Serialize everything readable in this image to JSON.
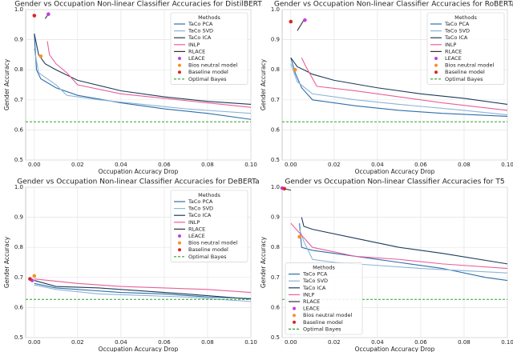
{
  "chart_data": [
    {
      "type": "line",
      "title": "Gender vs Occupation Non-linear Classifier Accuracies for DistilBERT",
      "x_label": "Occupation Accuracy Drop",
      "y_label": "Gender Accuracy",
      "legend_title": "Methods",
      "legend": "upper right",
      "grid": true,
      "xlim": [
        -0.004,
        0.1
      ],
      "ylim": [
        0.5,
        1.0
      ],
      "xticks": [
        {
          "value": 0,
          "label": "0.00"
        },
        {
          "value": 0.02,
          "label": "0.02"
        },
        {
          "value": 0.04,
          "label": "0.04"
        },
        {
          "value": 0.06,
          "label": "0.06"
        },
        {
          "value": 0.08,
          "label": "0.08"
        },
        {
          "value": 0.1,
          "label": "0.10"
        }
      ],
      "yticks": [
        0.5,
        0.6,
        0.7,
        0.8,
        0.9,
        {
          "value": 1,
          "label": "1.0"
        }
      ],
      "series": [
        {
          "name": "TaCo PCA",
          "color": "#2e6fa8",
          "kind": "line",
          "x": [
            0,
            0.001,
            0.003,
            0.01,
            0.02,
            0.04,
            0.06,
            0.08,
            0.1
          ],
          "values": [
            0.92,
            0.8,
            0.77,
            0.74,
            0.715,
            0.69,
            0.67,
            0.655,
            0.635
          ]
        },
        {
          "name": "TaCo SVD",
          "color": "#8cb3d9",
          "kind": "line",
          "x": [
            0,
            0.002,
            0.01,
            0.015,
            0.03,
            0.05,
            0.07,
            0.1
          ],
          "values": [
            0.87,
            0.79,
            0.75,
            0.715,
            0.7,
            0.685,
            0.67,
            0.655
          ]
        },
        {
          "name": "TaCo ICA",
          "color": "#1f3b5a",
          "kind": "line",
          "x": [
            0,
            0.002,
            0.005,
            0.01,
            0.02,
            0.04,
            0.06,
            0.08,
            0.1
          ],
          "values": [
            0.92,
            0.85,
            0.82,
            0.8,
            0.765,
            0.73,
            0.71,
            0.695,
            0.685
          ]
        },
        {
          "name": "INLP",
          "color": "#e8609a",
          "kind": "line",
          "x": [
            0.006,
            0.007,
            0.01,
            0.015,
            0.02,
            0.04,
            0.06,
            0.08,
            0.1
          ],
          "values": [
            0.895,
            0.85,
            0.82,
            0.79,
            0.75,
            0.72,
            0.705,
            0.69,
            0.675
          ]
        },
        {
          "name": "RLACE",
          "color": "#3a2d3f",
          "kind": "line",
          "x": [
            0.005,
            0.0065
          ],
          "values": [
            0.97,
            0.985
          ]
        },
        {
          "name": "LEACE",
          "color": "#c040e0",
          "kind": "scatter",
          "x": [
            0.0065
          ],
          "values": [
            0.985
          ]
        },
        {
          "name": "Bios neutral model",
          "color": "#f5922a",
          "kind": "scatter",
          "x": [
            0.003
          ],
          "values": [
            0.845
          ]
        },
        {
          "name": "Baseline model",
          "color": "#d62728",
          "kind": "scatter",
          "x": [
            0
          ],
          "values": [
            0.98
          ]
        },
        {
          "name": "Optimal Bayes",
          "color": "#2ca02c",
          "kind": "hline",
          "values": [
            0.627
          ]
        }
      ]
    },
    {
      "type": "line",
      "title": "Gender vs Occupation Non-linear Classifier Accuracies for RoBERTa",
      "x_label": "Occupation Accuracy Drop",
      "y_label": "Gender Accuracy",
      "legend_title": "Methods",
      "legend": "upper right",
      "grid": true,
      "xlim": [
        -0.004,
        0.1
      ],
      "ylim": [
        0.5,
        1.0
      ],
      "xticks": [
        {
          "value": 0,
          "label": "0.00"
        },
        {
          "value": 0.02,
          "label": "0.02"
        },
        {
          "value": 0.04,
          "label": "0.04"
        },
        {
          "value": 0.06,
          "label": "0.06"
        },
        {
          "value": 0.08,
          "label": "0.08"
        },
        {
          "value": 0.1,
          "label": "0.10"
        }
      ],
      "yticks": [
        0.5,
        0.6,
        0.7,
        0.8,
        0.9,
        {
          "value": 1,
          "label": "1.0"
        }
      ],
      "series": [
        {
          "name": "TaCo PCA",
          "color": "#2e6fa8",
          "kind": "line",
          "x": [
            0,
            0.002,
            0.005,
            0.01,
            0.03,
            0.05,
            0.07,
            0.1
          ],
          "values": [
            0.84,
            0.79,
            0.74,
            0.7,
            0.68,
            0.665,
            0.655,
            0.645
          ]
        },
        {
          "name": "TaCo SVD",
          "color": "#8cb3d9",
          "kind": "line",
          "x": [
            0,
            0.003,
            0.01,
            0.03,
            0.05,
            0.08,
            0.1
          ],
          "values": [
            0.82,
            0.76,
            0.72,
            0.7,
            0.685,
            0.665,
            0.65
          ]
        },
        {
          "name": "TaCo ICA",
          "color": "#1f3b5a",
          "kind": "line",
          "x": [
            0,
            0.003,
            0.006,
            0.01,
            0.02,
            0.04,
            0.06,
            0.08,
            0.1
          ],
          "values": [
            0.84,
            0.81,
            0.8,
            0.785,
            0.765,
            0.74,
            0.72,
            0.705,
            0.685
          ]
        },
        {
          "name": "INLP",
          "color": "#e8609a",
          "kind": "line",
          "x": [
            0.005,
            0.007,
            0.012,
            0.03,
            0.05,
            0.07,
            0.1
          ],
          "values": [
            0.84,
            0.81,
            0.745,
            0.73,
            0.71,
            0.69,
            0.665
          ]
        },
        {
          "name": "RLACE",
          "color": "#3a2d3f",
          "kind": "line",
          "x": [
            0.003,
            0.006
          ],
          "values": [
            0.93,
            0.965
          ]
        },
        {
          "name": "LEACE",
          "color": "#c040e0",
          "kind": "scatter",
          "x": [
            0.0065
          ],
          "values": [
            0.965
          ]
        },
        {
          "name": "Bios neutral model",
          "color": "#f5922a",
          "kind": "scatter",
          "x": [
            0.002
          ],
          "values": [
            0.8
          ]
        },
        {
          "name": "Baseline model",
          "color": "#d62728",
          "kind": "scatter",
          "x": [
            0
          ],
          "values": [
            0.96
          ]
        },
        {
          "name": "Optimal Bayes",
          "color": "#2ca02c",
          "kind": "hline",
          "values": [
            0.627
          ]
        }
      ]
    },
    {
      "type": "line",
      "title": "Gender vs Occupation Non-linear Classifier Accuracies for DeBERTa",
      "x_label": "Occupation Accuracy Drop",
      "y_label": "Gender Accuracy",
      "legend_title": "Methods",
      "legend": "upper right",
      "grid": true,
      "xlim": [
        -0.004,
        0.1
      ],
      "ylim": [
        0.5,
        1.0
      ],
      "xticks": [
        {
          "value": 0,
          "label": "0.00"
        },
        {
          "value": 0.02,
          "label": "0.02"
        },
        {
          "value": 0.04,
          "label": "0.04"
        },
        {
          "value": 0.06,
          "label": "0.06"
        },
        {
          "value": 0.08,
          "label": "0.08"
        },
        {
          "value": 0.1,
          "label": "0.10"
        }
      ],
      "yticks": [
        0.5,
        0.6,
        0.7,
        0.8,
        0.9,
        {
          "value": 1,
          "label": "1.0"
        }
      ],
      "series": [
        {
          "name": "TaCo PCA",
          "color": "#2e6fa8",
          "kind": "line",
          "x": [
            0,
            0.01,
            0.02,
            0.04,
            0.06,
            0.08,
            0.1
          ],
          "values": [
            0.68,
            0.665,
            0.66,
            0.65,
            0.645,
            0.635,
            0.63
          ]
        },
        {
          "name": "TaCo SVD",
          "color": "#8cb3d9",
          "kind": "line",
          "x": [
            0,
            0.01,
            0.03,
            0.05,
            0.07,
            0.1
          ],
          "values": [
            0.675,
            0.66,
            0.645,
            0.64,
            0.635,
            0.62
          ]
        },
        {
          "name": "TaCo ICA",
          "color": "#1f3b5a",
          "kind": "line",
          "x": [
            0,
            0.01,
            0.03,
            0.05,
            0.07,
            0.1
          ],
          "values": [
            0.69,
            0.67,
            0.665,
            0.655,
            0.645,
            0.628
          ]
        },
        {
          "name": "INLP",
          "color": "#e8609a",
          "kind": "line",
          "x": [
            0,
            0.02,
            0.04,
            0.06,
            0.08,
            0.1
          ],
          "values": [
            0.695,
            0.68,
            0.67,
            0.665,
            0.66,
            0.65
          ]
        },
        {
          "name": "RLACE",
          "color": "#3a2d3f",
          "kind": "line",
          "x": [
            -0.0025,
            -0.0015
          ],
          "values": [
            0.695,
            0.7
          ]
        },
        {
          "name": "LEACE",
          "color": "#c040e0",
          "kind": "scatter",
          "x": [
            -0.001
          ],
          "values": [
            0.69
          ]
        },
        {
          "name": "Bios neutral model",
          "color": "#f5922a",
          "kind": "scatter",
          "x": [
            0
          ],
          "values": [
            0.705
          ]
        },
        {
          "name": "Baseline model",
          "color": "#d62728",
          "kind": "scatter",
          "x": [
            -0.002
          ],
          "values": [
            0.695
          ]
        },
        {
          "name": "Optimal Bayes",
          "color": "#2ca02c",
          "kind": "hline",
          "values": [
            0.627
          ]
        }
      ]
    },
    {
      "type": "line",
      "title": "Gender vs Occupation Non-linear Classifier Accuracies for T5",
      "x_label": "Occupation Accuracy Drop",
      "y_label": "Gender Accuracy",
      "legend_title": "Methods",
      "legend": "lower left",
      "grid": true,
      "xlim": [
        -0.004,
        0.1
      ],
      "ylim": [
        0.5,
        1.0
      ],
      "xticks": [
        {
          "value": 0,
          "label": "0.00"
        },
        {
          "value": 0.02,
          "label": "0.02"
        },
        {
          "value": 0.04,
          "label": "0.04"
        },
        {
          "value": 0.06,
          "label": "0.06"
        },
        {
          "value": 0.08,
          "label": "0.08"
        },
        {
          "value": 0.1,
          "label": "0.10"
        }
      ],
      "yticks": [
        0.5,
        0.6,
        0.7,
        0.8,
        0.9,
        {
          "value": 1,
          "label": "1.0"
        }
      ],
      "series": [
        {
          "name": "TaCo PCA",
          "color": "#2e6fa8",
          "kind": "line",
          "x": [
            0.004,
            0.005,
            0.01,
            0.03,
            0.05,
            0.07,
            0.09,
            0.1
          ],
          "values": [
            0.88,
            0.8,
            0.79,
            0.77,
            0.75,
            0.73,
            0.7,
            0.69
          ]
        },
        {
          "name": "TaCo SVD",
          "color": "#8cb3d9",
          "kind": "line",
          "x": [
            0.004,
            0.006,
            0.01,
            0.02,
            0.04,
            0.06,
            0.1
          ],
          "values": [
            0.86,
            0.82,
            0.76,
            0.75,
            0.74,
            0.73,
            0.715
          ]
        },
        {
          "name": "TaCo ICA",
          "color": "#1f3b5a",
          "kind": "line",
          "x": [
            0.005,
            0.006,
            0.01,
            0.03,
            0.05,
            0.07,
            0.1
          ],
          "values": [
            0.9,
            0.87,
            0.86,
            0.83,
            0.8,
            0.78,
            0.745
          ]
        },
        {
          "name": "INLP",
          "color": "#e8609a",
          "kind": "line",
          "x": [
            0,
            0.005,
            0.01,
            0.03,
            0.05,
            0.07,
            0.1
          ],
          "values": [
            0.88,
            0.84,
            0.8,
            0.77,
            0.76,
            0.745,
            0.73
          ]
        },
        {
          "name": "RLACE",
          "color": "#3a2d3f",
          "kind": "line",
          "x": [
            -0.003,
            0
          ],
          "values": [
            0.995,
            0.99
          ]
        },
        {
          "name": "LEACE",
          "color": "#c040e0",
          "kind": "scatter",
          "x": [
            -0.004
          ],
          "values": [
            0.997
          ]
        },
        {
          "name": "Bios neutral model",
          "color": "#f5922a",
          "kind": "scatter",
          "x": [
            0.004
          ],
          "values": [
            0.835
          ]
        },
        {
          "name": "Baseline model",
          "color": "#d62728",
          "kind": "scatter",
          "x": [
            -0.003
          ],
          "values": [
            0.995
          ]
        },
        {
          "name": "Optimal Bayes",
          "color": "#2ca02c",
          "kind": "hline",
          "values": [
            0.627
          ]
        }
      ]
    }
  ]
}
